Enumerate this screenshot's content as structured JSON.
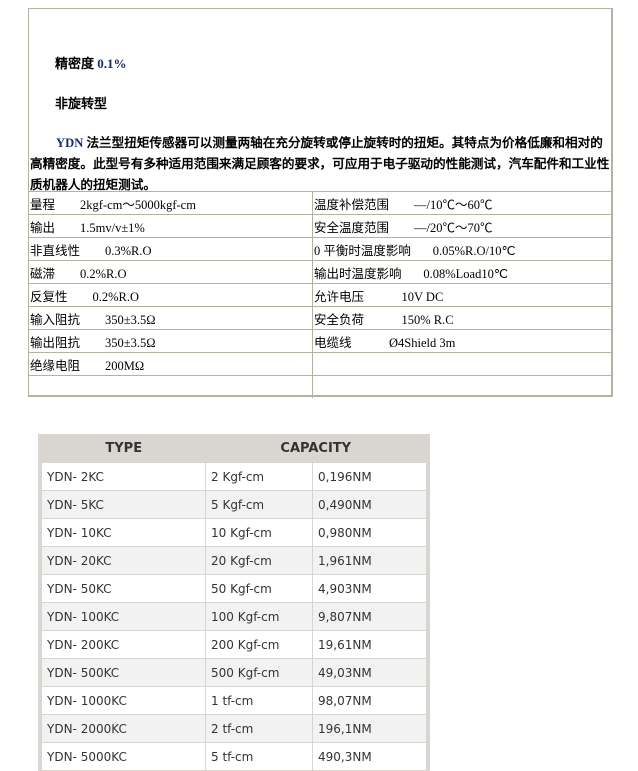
{
  "header": {
    "precision": "精密度 ",
    "precision_value": "0.1%",
    "type_label": "非旋转型"
  },
  "intro": {
    "brand": "YDN",
    "text": " 法兰型扭矩传感器可以测量两轴在充分旋转或停止旋转时的扭矩。其特点为价格低廉和相对的高精密度。此型号有多种适用范围来满足顾客的要求，可应用于电子驱动的性能测试，汽车配件和工业性质机器人的扭矩测试。"
  },
  "specs": [
    [
      "量程        2kgf-cm～5000kgf-cm",
      "温度补偿范围        —/10℃～60℃"
    ],
    [
      "输出        1.5mv/v±1%",
      "安全温度范围        —/20℃～70℃"
    ],
    [
      "非直线性        0.3%R.O",
      "0 平衡时温度影响       0.05%R.O/10℃"
    ],
    [
      "磁滞        0.2%R.O",
      "输出时温度影响       0.08%Load10℃"
    ],
    [
      "反复性        0.2%R.O",
      "允许电压            10V DC"
    ],
    [
      "输入阻抗        350±3.5Ω",
      "安全负荷            150% R.C"
    ],
    [
      "输出阻抗        350±3.5Ω",
      "电缆线            Ø4Shield 3m"
    ],
    [
      "绝缘电阻        200MΩ",
      ""
    ],
    [
      "",
      ""
    ]
  ],
  "capacity_table": {
    "headers": [
      "TYPE",
      "CAPACITY"
    ],
    "rows": [
      [
        "YDN- 2KC",
        "2 Kgf-cm",
        "0,196NM"
      ],
      [
        "YDN- 5KC",
        "5 Kgf-cm",
        "0,490NM"
      ],
      [
        "YDN- 10KC",
        "10 Kgf-cm",
        "0,980NM"
      ],
      [
        "YDN- 20KC",
        "20 Kgf-cm",
        "1,961NM"
      ],
      [
        "YDN- 50KC",
        "50 Kgf-cm",
        "4,903NM"
      ],
      [
        "YDN- 100KC",
        "100 Kgf-cm",
        "9,807NM"
      ],
      [
        "YDN- 200KC",
        "200 Kgf-cm",
        "19,61NM"
      ],
      [
        "YDN- 500KC",
        "500 Kgf-cm",
        "49,03NM"
      ],
      [
        "YDN- 1000KC",
        "1 tf-cm",
        "98,07NM"
      ],
      [
        "YDN- 2000KC",
        "2 tf-cm",
        "196,1NM"
      ],
      [
        "YDN- 5000KC",
        "5 tf-cm",
        "490,3NM"
      ]
    ]
  }
}
